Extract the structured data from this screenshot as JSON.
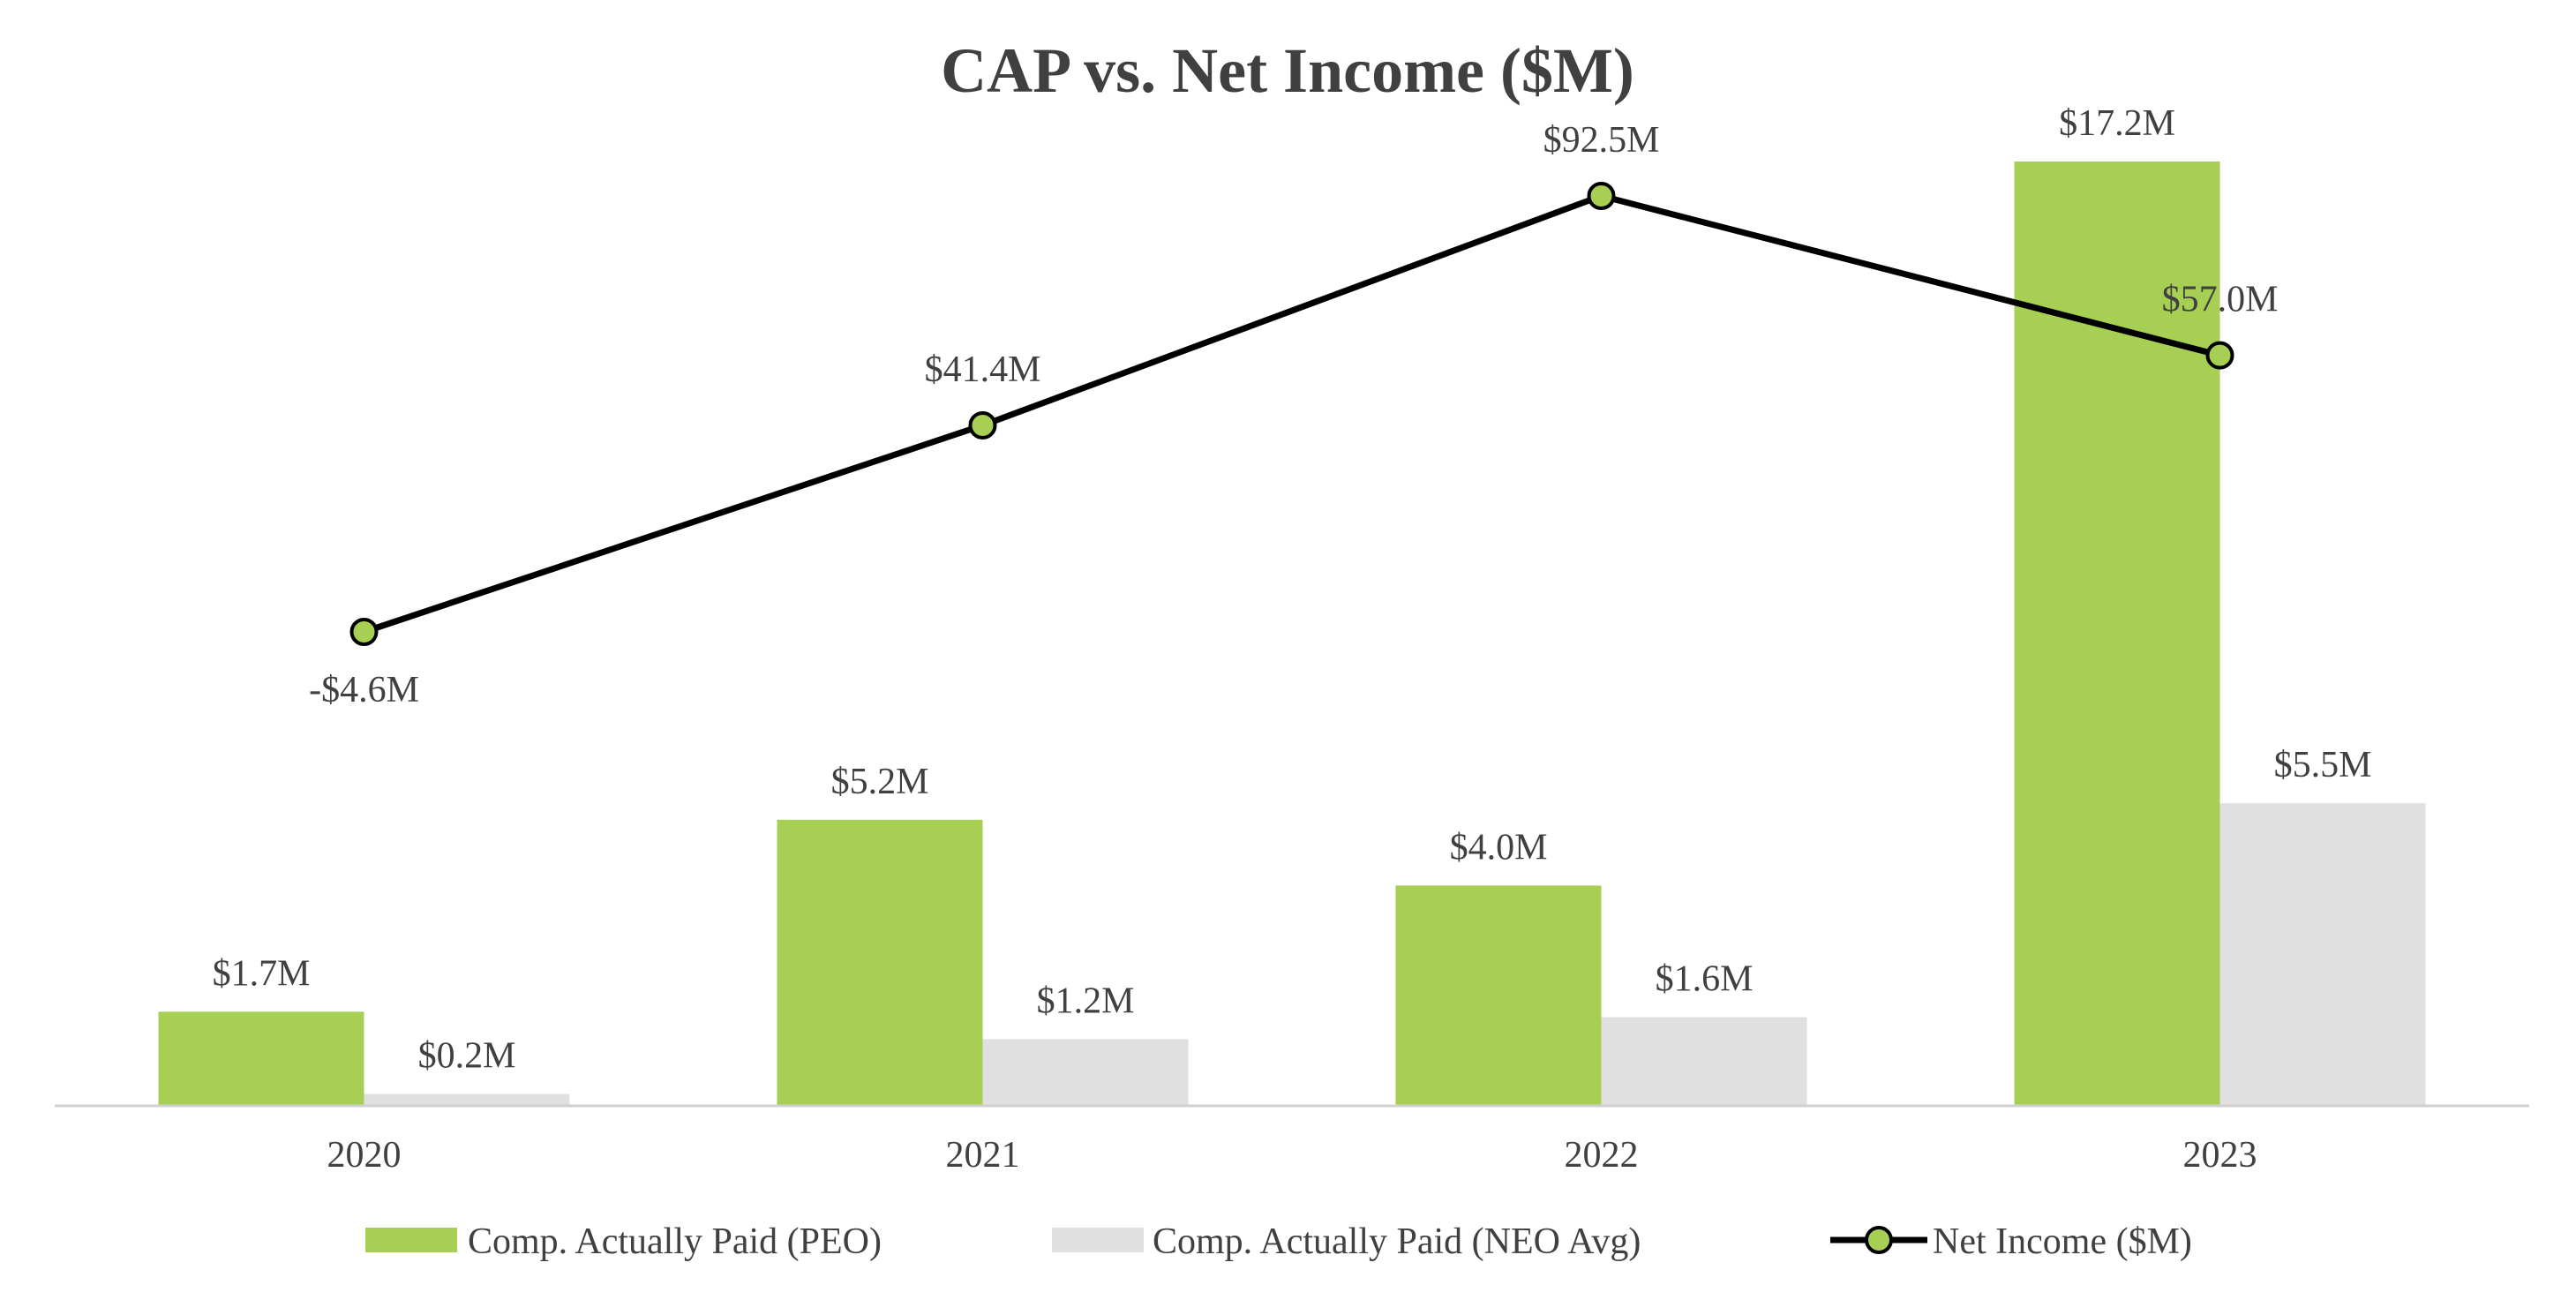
{
  "chart_data": {
    "type": "bar",
    "title": "CAP vs. Net Income ($M)",
    "xlabel": "",
    "ylabel": "",
    "categories": [
      "2020",
      "2021",
      "2022",
      "2023"
    ],
    "grid": false,
    "legend_position": "bottom",
    "bar_ylim": [
      0,
      17.2
    ],
    "line_ylim": [
      -4.6,
      92.5
    ],
    "series": [
      {
        "name": "Comp. Actually Paid (PEO)",
        "kind": "bar",
        "color": "#a6cf54",
        "values": [
          1.7,
          5.2,
          4.0,
          17.2
        ],
        "labels": [
          "$1.7M",
          "$5.2M",
          "$4.0M",
          "$17.2M"
        ]
      },
      {
        "name": "Comp. Actually Paid (NEO Avg)",
        "kind": "bar",
        "color": "#e0e0e0",
        "values": [
          0.2,
          1.2,
          1.6,
          5.5
        ],
        "labels": [
          "$0.2M",
          "$1.2M",
          "$1.6M",
          "$5.5M"
        ]
      },
      {
        "name": "Net Income ($M)",
        "kind": "line",
        "color": "#000000",
        "marker_color": "#a6cf54",
        "values": [
          -4.6,
          41.4,
          92.5,
          57.0
        ],
        "labels": [
          "-$4.6M",
          "$41.4M",
          "$92.5M",
          "$57.0M"
        ]
      }
    ],
    "text_color": "#404040",
    "axis_color": "#d0d0d0"
  }
}
